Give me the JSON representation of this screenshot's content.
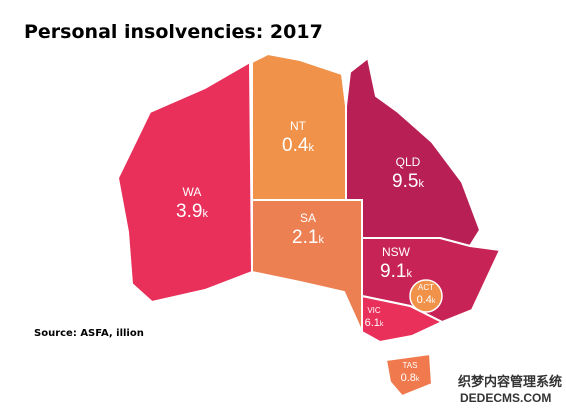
{
  "header": {
    "title": "Personal insolvencies: 2017"
  },
  "regions": [
    {
      "name": "WA",
      "value": 3.9,
      "unit": "k",
      "color": "#e8305a"
    },
    {
      "name": "NT",
      "value": 0.4,
      "unit": "k",
      "color": "#f0924a"
    },
    {
      "name": "SA",
      "value": 2.1,
      "unit": "k",
      "color": "#ec8053"
    },
    {
      "name": "QLD",
      "value": 9.5,
      "unit": "k",
      "color": "#b81f54"
    },
    {
      "name": "NSW",
      "value": 9.1,
      "unit": "k",
      "color": "#c82356"
    },
    {
      "name": "ACT",
      "value": 0.4,
      "unit": "k",
      "color": "#f0924a"
    },
    {
      "name": "VIC",
      "value": 6.1,
      "unit": "k",
      "color": "#e8305a"
    },
    {
      "name": "TAS",
      "value": 0.8,
      "unit": "k",
      "color": "#f07a4e"
    }
  ],
  "footer": {
    "source": "Source: ASFA, illion"
  },
  "watermark": {
    "line1": "织梦内容管理系统",
    "line2": "DEDECMS.COM"
  }
}
